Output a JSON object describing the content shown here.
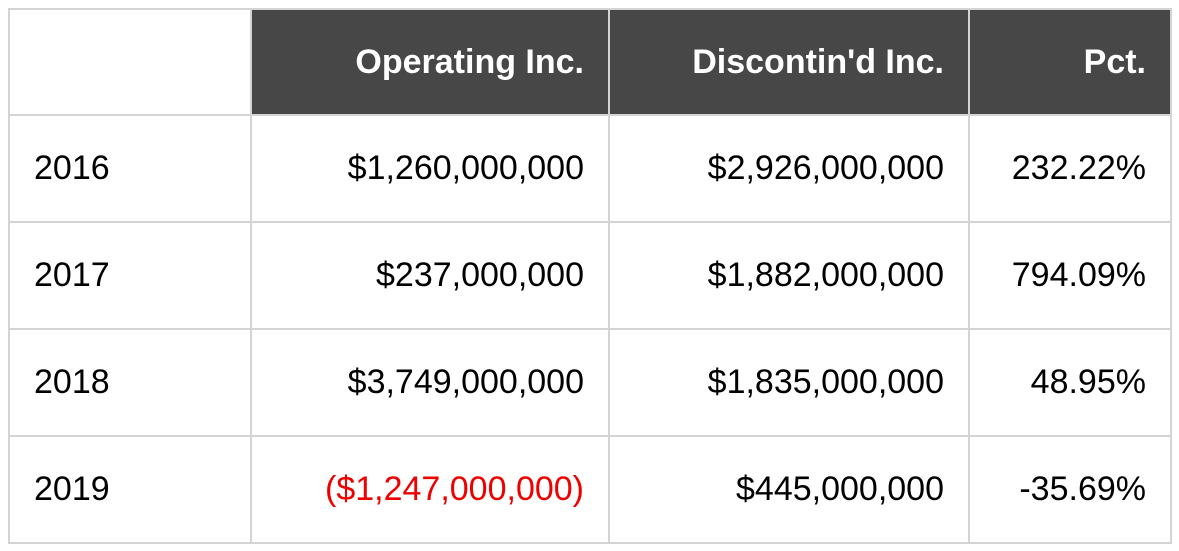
{
  "table": {
    "headers": [
      "",
      "Operating Inc.",
      "Discontin'd Inc.",
      "Pct."
    ],
    "rows": [
      {
        "year": "2016",
        "operating": "$1,260,000,000",
        "discontinued": "$2,926,000,000",
        "pct": "232.22%"
      },
      {
        "year": "2017",
        "operating": "$237,000,000",
        "discontinued": "$1,882,000,000",
        "pct": "794.09%"
      },
      {
        "year": "2018",
        "operating": "$3,749,000,000",
        "discontinued": "$1,835,000,000",
        "pct": "48.95%"
      },
      {
        "year": "2019",
        "operating": "($1,247,000,000)",
        "discontinued": "$445,000,000",
        "pct": "-35.69%"
      }
    ]
  },
  "colors": {
    "header_bg": "#474747",
    "header_text": "#ffffff",
    "border": "#d4d4d4",
    "negative": "#ee0000"
  }
}
